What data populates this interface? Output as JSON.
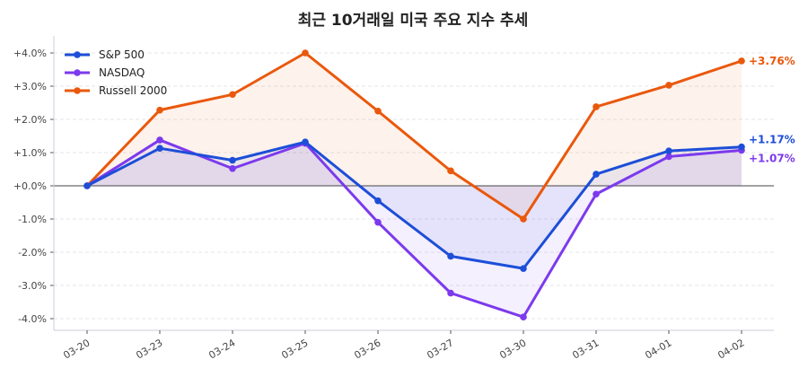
{
  "chart_data": {
    "type": "line",
    "title": "최근 10거래일 미국 주요 지수 추세",
    "xlabel": "",
    "ylabel": "",
    "categories": [
      "03-20",
      "03-23",
      "03-24",
      "03-25",
      "03-26",
      "03-27",
      "03-30",
      "03-31",
      "04-01",
      "04-02"
    ],
    "ylim": [
      -4.3,
      4.4
    ],
    "yticks": [
      4,
      3,
      2,
      1,
      0,
      -1,
      -2,
      -3,
      -4
    ],
    "ytick_labels": [
      "+4.0%",
      "+3.0%",
      "+2.0%",
      "+1.0%",
      "+0.0%",
      "-1.0%",
      "-2.0%",
      "-3.0%",
      "-4.0%"
    ],
    "grid": "horizontal dashed",
    "legend": "top-left",
    "series": [
      {
        "name": "S&P 500",
        "color": "#1d4ed8",
        "fill": "#e6e6f8",
        "values": [
          0,
          1.13,
          0.77,
          1.32,
          -0.45,
          -2.12,
          -2.49,
          0.35,
          1.05,
          1.17
        ],
        "end_label": "+1.17%"
      },
      {
        "name": "NASDAQ",
        "color": "#7c3aed",
        "fill": "#f3eefc",
        "values": [
          0,
          1.38,
          0.52,
          1.28,
          -1.1,
          -3.23,
          -3.95,
          -0.25,
          0.88,
          1.07
        ],
        "end_label": "+1.07%"
      },
      {
        "name": "Russell 2000",
        "color": "#ea580c",
        "fill": "#fdf4ee",
        "values": [
          0,
          2.28,
          2.75,
          4.0,
          2.25,
          0.45,
          -1.0,
          2.38,
          3.03,
          3.76
        ],
        "end_label": "+3.76%"
      }
    ]
  }
}
